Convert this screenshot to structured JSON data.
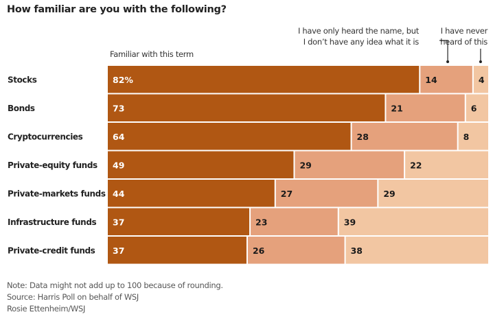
{
  "chart_data": {
    "type": "bar",
    "orientation": "horizontal",
    "stacked": true,
    "title": "How familiar are you with the following?",
    "categories": [
      "Stocks",
      "Bonds",
      "Cryptocurrencies",
      "Private-equity funds",
      "Private-markets funds",
      "Infrastructure funds",
      "Private-credit funds"
    ],
    "series": [
      {
        "name": "Familiar with this term",
        "color": "#b05713",
        "label_color": "#ffffff",
        "values": [
          82,
          73,
          64,
          49,
          44,
          37,
          37
        ]
      },
      {
        "name": "I have only heard the name, but I don’t have any idea what it is",
        "color": "#e5a17c",
        "label_color": "#1a1a1a",
        "values": [
          14,
          21,
          28,
          29,
          27,
          23,
          26
        ]
      },
      {
        "name": "I have never heard of this",
        "color": "#f2c6a2",
        "label_color": "#1a1a1a",
        "values": [
          4,
          6,
          8,
          22,
          29,
          39,
          38
        ]
      }
    ],
    "first_value_suffix": "%",
    "xlim": [
      0,
      100
    ],
    "grid": false,
    "legend": "top, inline labels above bars"
  },
  "legend_labels": {
    "familiar": "Familiar with this term",
    "heard_line1": "I have only heard the name, but",
    "heard_line2": "I don’t have any idea what it is",
    "never_line1": "I have never",
    "never_line2": "heard of this"
  },
  "footer": {
    "note": "Note: Data might not add up to 100 because of rounding.",
    "source": "Source: Harris Poll on behalf of WSJ",
    "credit": "Rosie Ettenheim/WSJ"
  }
}
